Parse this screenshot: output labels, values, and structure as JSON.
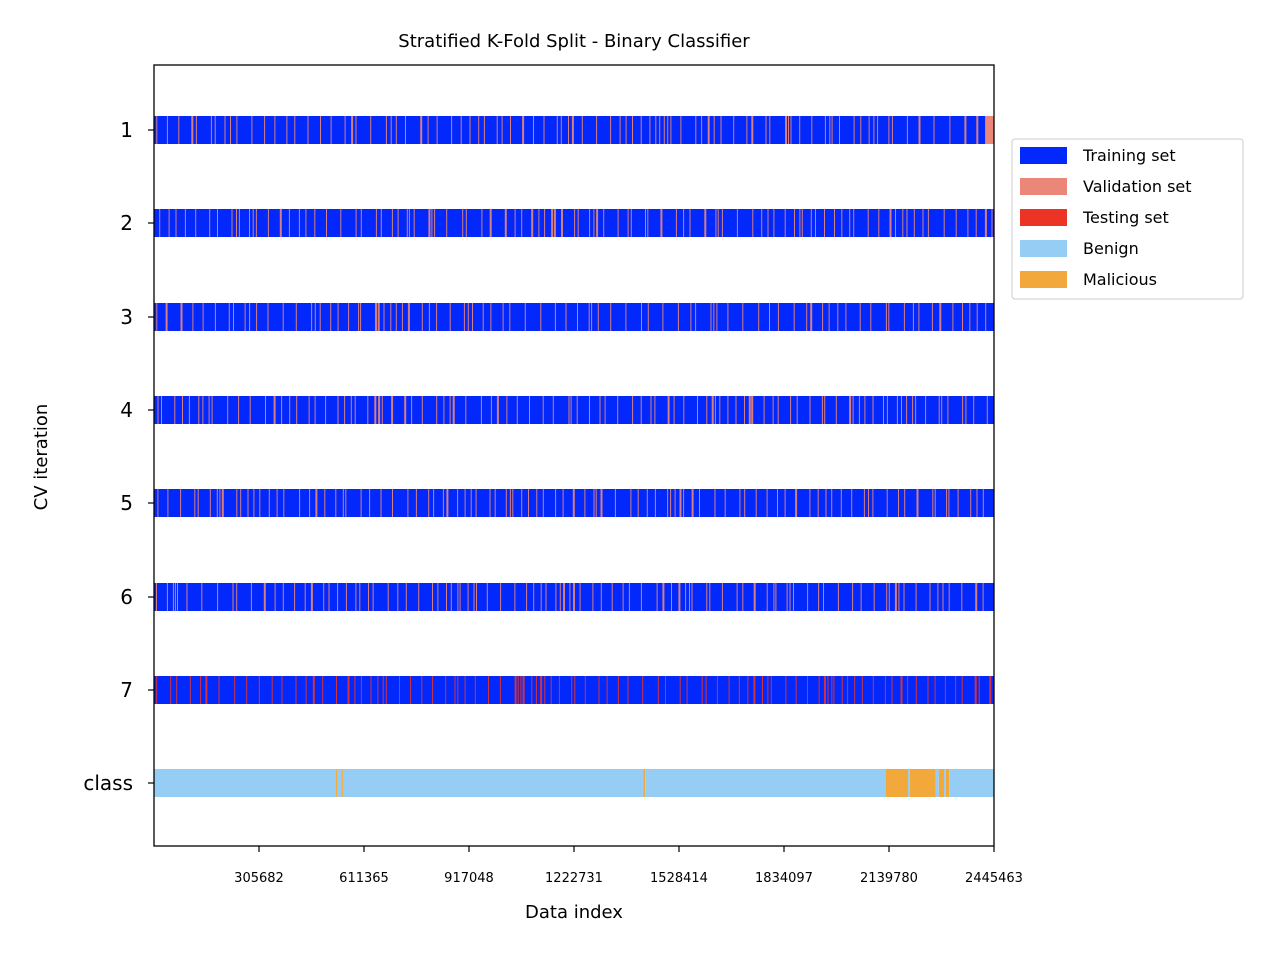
{
  "chart_data": {
    "type": "bar",
    "title": "Stratified K-Fold Split - Binary Classifier",
    "xlabel": "Data index",
    "ylabel": "CV iteration",
    "xlim": [
      0,
      2445463
    ],
    "x_ticks": [
      305682,
      611365,
      917048,
      1222731,
      1528414,
      1834097,
      2139780,
      2445463
    ],
    "x_tick_labels": [
      "305682",
      "611365",
      "917048",
      "1222731",
      "1528414",
      "1834097",
      "2139780",
      "2445463"
    ],
    "y_tick_labels": [
      "1",
      "2",
      "3",
      "4",
      "5",
      "6",
      "7",
      "class"
    ],
    "grid": false,
    "legend_position": "outside-right",
    "legend": [
      {
        "label": "Training set",
        "color": "#0328fc"
      },
      {
        "label": "Validation set",
        "color": "#eb8778"
      },
      {
        "label": "Testing set",
        "color": "#eb3326"
      },
      {
        "label": "Benign",
        "color": "#96cdf5"
      },
      {
        "label": "Malicious",
        "color": "#f2a83b"
      }
    ],
    "rows": [
      {
        "label": "1",
        "base": "Training set",
        "overlay": "Validation set",
        "tail_segment": [
          2420000,
          2445463
        ]
      },
      {
        "label": "2",
        "base": "Training set",
        "overlay": "Validation set"
      },
      {
        "label": "3",
        "base": "Training set",
        "overlay": "Validation set"
      },
      {
        "label": "4",
        "base": "Training set",
        "overlay": "Validation set"
      },
      {
        "label": "5",
        "base": "Training set",
        "overlay": "Validation set"
      },
      {
        "label": "6",
        "base": "Training set",
        "overlay": "Validation set"
      },
      {
        "label": "7",
        "base": "Training set",
        "overlay": "Testing set"
      }
    ],
    "class_row": {
      "label": "class",
      "segments": [
        {
          "class": "Benign",
          "start": 0,
          "end": 530000
        },
        {
          "class": "Malicious",
          "start": 530000,
          "end": 535000
        },
        {
          "class": "Benign",
          "start": 535000,
          "end": 545000
        },
        {
          "class": "Malicious",
          "start": 545000,
          "end": 550000
        },
        {
          "class": "Benign",
          "start": 550000,
          "end": 1425000
        },
        {
          "class": "Malicious",
          "start": 1425000,
          "end": 1430000
        },
        {
          "class": "Benign",
          "start": 1430000,
          "end": 2130000
        },
        {
          "class": "Malicious",
          "start": 2130000,
          "end": 2195000
        },
        {
          "class": "Benign",
          "start": 2195000,
          "end": 2200000
        },
        {
          "class": "Malicious",
          "start": 2200000,
          "end": 2275000
        },
        {
          "class": "Benign",
          "start": 2275000,
          "end": 2285000
        },
        {
          "class": "Malicious",
          "start": 2285000,
          "end": 2300000
        },
        {
          "class": "Benign",
          "start": 2300000,
          "end": 2305000
        },
        {
          "class": "Malicious",
          "start": 2305000,
          "end": 2315000
        },
        {
          "class": "Benign",
          "start": 2315000,
          "end": 2445463
        }
      ]
    }
  }
}
